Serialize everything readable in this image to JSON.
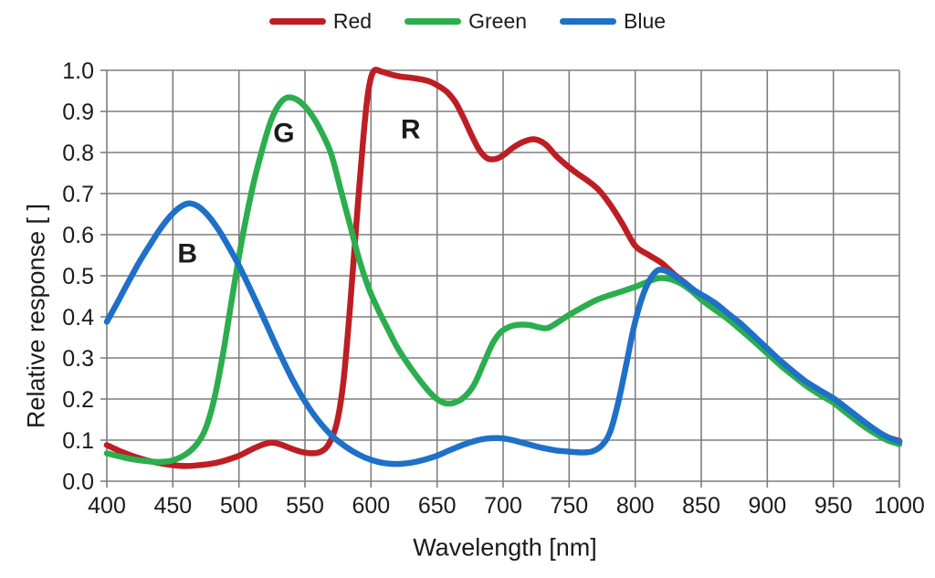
{
  "figure": {
    "background": "#ffffff"
  },
  "legend": {
    "entries": [
      {
        "label": "Red",
        "color": "#bd1e24"
      },
      {
        "label": "Green",
        "color": "#2bae4e"
      },
      {
        "label": "Blue",
        "color": "#1e70c8"
      }
    ]
  },
  "chart_data": {
    "type": "line",
    "title": "",
    "xlabel": "Wavelength [nm]",
    "ylabel": "Relative response [ ]",
    "xlim": [
      400,
      1000
    ],
    "ylim": [
      0.0,
      1.0
    ],
    "xticks": [
      400,
      450,
      500,
      550,
      600,
      650,
      700,
      750,
      800,
      850,
      900,
      950,
      1000
    ],
    "yticks": [
      0.0,
      0.1,
      0.2,
      0.3,
      0.4,
      0.5,
      0.6,
      0.7,
      0.8,
      0.9,
      1.0
    ],
    "grid": true,
    "grid_color": "#7f7f7f",
    "text_color": "#1b1b1b",
    "legend_position": "top",
    "annotations": [
      {
        "text": "B",
        "x": 461,
        "y": 0.553
      },
      {
        "text": "G",
        "x": 534,
        "y": 0.847
      },
      {
        "text": "R",
        "x": 630,
        "y": 0.856
      }
    ],
    "series": [
      {
        "name": "Red",
        "color": "#bd1e24",
        "points": [
          [
            400,
            0.088
          ],
          [
            410,
            0.073
          ],
          [
            420,
            0.061
          ],
          [
            430,
            0.051
          ],
          [
            440,
            0.044
          ],
          [
            450,
            0.039
          ],
          [
            460,
            0.037
          ],
          [
            470,
            0.039
          ],
          [
            480,
            0.043
          ],
          [
            490,
            0.051
          ],
          [
            500,
            0.062
          ],
          [
            510,
            0.078
          ],
          [
            518,
            0.089
          ],
          [
            525,
            0.094
          ],
          [
            532,
            0.089
          ],
          [
            540,
            0.079
          ],
          [
            548,
            0.071
          ],
          [
            555,
            0.068
          ],
          [
            562,
            0.072
          ],
          [
            568,
            0.09
          ],
          [
            574,
            0.14
          ],
          [
            579,
            0.24
          ],
          [
            584,
            0.42
          ],
          [
            589,
            0.63
          ],
          [
            594,
            0.83
          ],
          [
            598,
            0.95
          ],
          [
            602,
            0.998
          ],
          [
            608,
            0.997
          ],
          [
            615,
            0.99
          ],
          [
            622,
            0.985
          ],
          [
            630,
            0.982
          ],
          [
            638,
            0.978
          ],
          [
            645,
            0.972
          ],
          [
            652,
            0.96
          ],
          [
            658,
            0.946
          ],
          [
            664,
            0.922
          ],
          [
            670,
            0.885
          ],
          [
            676,
            0.843
          ],
          [
            682,
            0.806
          ],
          [
            688,
            0.786
          ],
          [
            694,
            0.784
          ],
          [
            700,
            0.793
          ],
          [
            708,
            0.813
          ],
          [
            716,
            0.827
          ],
          [
            724,
            0.832
          ],
          [
            732,
            0.82
          ],
          [
            740,
            0.792
          ],
          [
            748,
            0.769
          ],
          [
            756,
            0.749
          ],
          [
            765,
            0.729
          ],
          [
            772,
            0.71
          ],
          [
            780,
            0.678
          ],
          [
            790,
            0.628
          ],
          [
            800,
            0.573
          ],
          [
            810,
            0.551
          ],
          [
            820,
            0.531
          ],
          [
            830,
            0.502
          ],
          [
            840,
            0.477
          ],
          [
            850,
            0.448
          ],
          [
            860,
            0.425
          ],
          [
            870,
            0.402
          ],
          [
            880,
            0.375
          ],
          [
            890,
            0.347
          ],
          [
            900,
            0.317
          ],
          [
            910,
            0.288
          ],
          [
            920,
            0.262
          ],
          [
            930,
            0.237
          ],
          [
            940,
            0.215
          ],
          [
            950,
            0.197
          ],
          [
            960,
            0.173
          ],
          [
            970,
            0.148
          ],
          [
            980,
            0.126
          ],
          [
            990,
            0.108
          ],
          [
            1000,
            0.098
          ]
        ]
      },
      {
        "name": "Green",
        "color": "#2bae4e",
        "points": [
          [
            400,
            0.068
          ],
          [
            410,
            0.06
          ],
          [
            420,
            0.053
          ],
          [
            430,
            0.049
          ],
          [
            440,
            0.047
          ],
          [
            450,
            0.051
          ],
          [
            460,
            0.066
          ],
          [
            468,
            0.09
          ],
          [
            475,
            0.13
          ],
          [
            482,
            0.21
          ],
          [
            489,
            0.33
          ],
          [
            496,
            0.47
          ],
          [
            503,
            0.6
          ],
          [
            510,
            0.71
          ],
          [
            517,
            0.8
          ],
          [
            524,
            0.875
          ],
          [
            530,
            0.915
          ],
          [
            536,
            0.933
          ],
          [
            543,
            0.93
          ],
          [
            550,
            0.912
          ],
          [
            557,
            0.882
          ],
          [
            564,
            0.84
          ],
          [
            570,
            0.795
          ],
          [
            577,
            0.71
          ],
          [
            584,
            0.625
          ],
          [
            591,
            0.54
          ],
          [
            598,
            0.472
          ],
          [
            605,
            0.42
          ],
          [
            612,
            0.375
          ],
          [
            620,
            0.325
          ],
          [
            630,
            0.276
          ],
          [
            640,
            0.233
          ],
          [
            648,
            0.205
          ],
          [
            655,
            0.191
          ],
          [
            662,
            0.19
          ],
          [
            670,
            0.203
          ],
          [
            678,
            0.235
          ],
          [
            685,
            0.285
          ],
          [
            692,
            0.335
          ],
          [
            698,
            0.362
          ],
          [
            705,
            0.376
          ],
          [
            712,
            0.381
          ],
          [
            720,
            0.38
          ],
          [
            728,
            0.374
          ],
          [
            734,
            0.373
          ],
          [
            742,
            0.388
          ],
          [
            750,
            0.405
          ],
          [
            760,
            0.423
          ],
          [
            770,
            0.44
          ],
          [
            780,
            0.452
          ],
          [
            790,
            0.462
          ],
          [
            800,
            0.473
          ],
          [
            810,
            0.486
          ],
          [
            818,
            0.494
          ],
          [
            826,
            0.492
          ],
          [
            834,
            0.482
          ],
          [
            842,
            0.465
          ],
          [
            850,
            0.442
          ],
          [
            860,
            0.418
          ],
          [
            870,
            0.395
          ],
          [
            880,
            0.368
          ],
          [
            890,
            0.34
          ],
          [
            900,
            0.311
          ],
          [
            910,
            0.282
          ],
          [
            920,
            0.256
          ],
          [
            930,
            0.231
          ],
          [
            940,
            0.21
          ],
          [
            950,
            0.191
          ],
          [
            960,
            0.166
          ],
          [
            970,
            0.141
          ],
          [
            980,
            0.119
          ],
          [
            990,
            0.101
          ],
          [
            1000,
            0.09
          ]
        ]
      },
      {
        "name": "Blue",
        "color": "#1e70c8",
        "points": [
          [
            400,
            0.388
          ],
          [
            408,
            0.435
          ],
          [
            416,
            0.483
          ],
          [
            424,
            0.53
          ],
          [
            432,
            0.572
          ],
          [
            440,
            0.612
          ],
          [
            448,
            0.645
          ],
          [
            455,
            0.666
          ],
          [
            462,
            0.676
          ],
          [
            469,
            0.669
          ],
          [
            476,
            0.649
          ],
          [
            484,
            0.615
          ],
          [
            492,
            0.572
          ],
          [
            500,
            0.525
          ],
          [
            510,
            0.458
          ],
          [
            520,
            0.388
          ],
          [
            530,
            0.317
          ],
          [
            540,
            0.251
          ],
          [
            550,
            0.194
          ],
          [
            560,
            0.148
          ],
          [
            570,
            0.112
          ],
          [
            580,
            0.086
          ],
          [
            590,
            0.066
          ],
          [
            600,
            0.052
          ],
          [
            610,
            0.044
          ],
          [
            620,
            0.042
          ],
          [
            630,
            0.045
          ],
          [
            640,
            0.052
          ],
          [
            650,
            0.062
          ],
          [
            660,
            0.076
          ],
          [
            670,
            0.089
          ],
          [
            680,
            0.099
          ],
          [
            688,
            0.104
          ],
          [
            696,
            0.105
          ],
          [
            704,
            0.102
          ],
          [
            712,
            0.096
          ],
          [
            720,
            0.089
          ],
          [
            730,
            0.081
          ],
          [
            740,
            0.075
          ],
          [
            750,
            0.072
          ],
          [
            760,
            0.07
          ],
          [
            768,
            0.073
          ],
          [
            775,
            0.088
          ],
          [
            781,
            0.12
          ],
          [
            787,
            0.19
          ],
          [
            793,
            0.28
          ],
          [
            799,
            0.375
          ],
          [
            805,
            0.445
          ],
          [
            811,
            0.49
          ],
          [
            817,
            0.513
          ],
          [
            823,
            0.512
          ],
          [
            830,
            0.499
          ],
          [
            838,
            0.481
          ],
          [
            846,
            0.462
          ],
          [
            854,
            0.447
          ],
          [
            862,
            0.43
          ],
          [
            870,
            0.409
          ],
          [
            880,
            0.383
          ],
          [
            890,
            0.353
          ],
          [
            900,
            0.323
          ],
          [
            910,
            0.293
          ],
          [
            920,
            0.266
          ],
          [
            930,
            0.241
          ],
          [
            940,
            0.221
          ],
          [
            950,
            0.202
          ],
          [
            960,
            0.178
          ],
          [
            970,
            0.153
          ],
          [
            980,
            0.129
          ],
          [
            990,
            0.109
          ],
          [
            1000,
            0.096
          ]
        ]
      }
    ]
  }
}
